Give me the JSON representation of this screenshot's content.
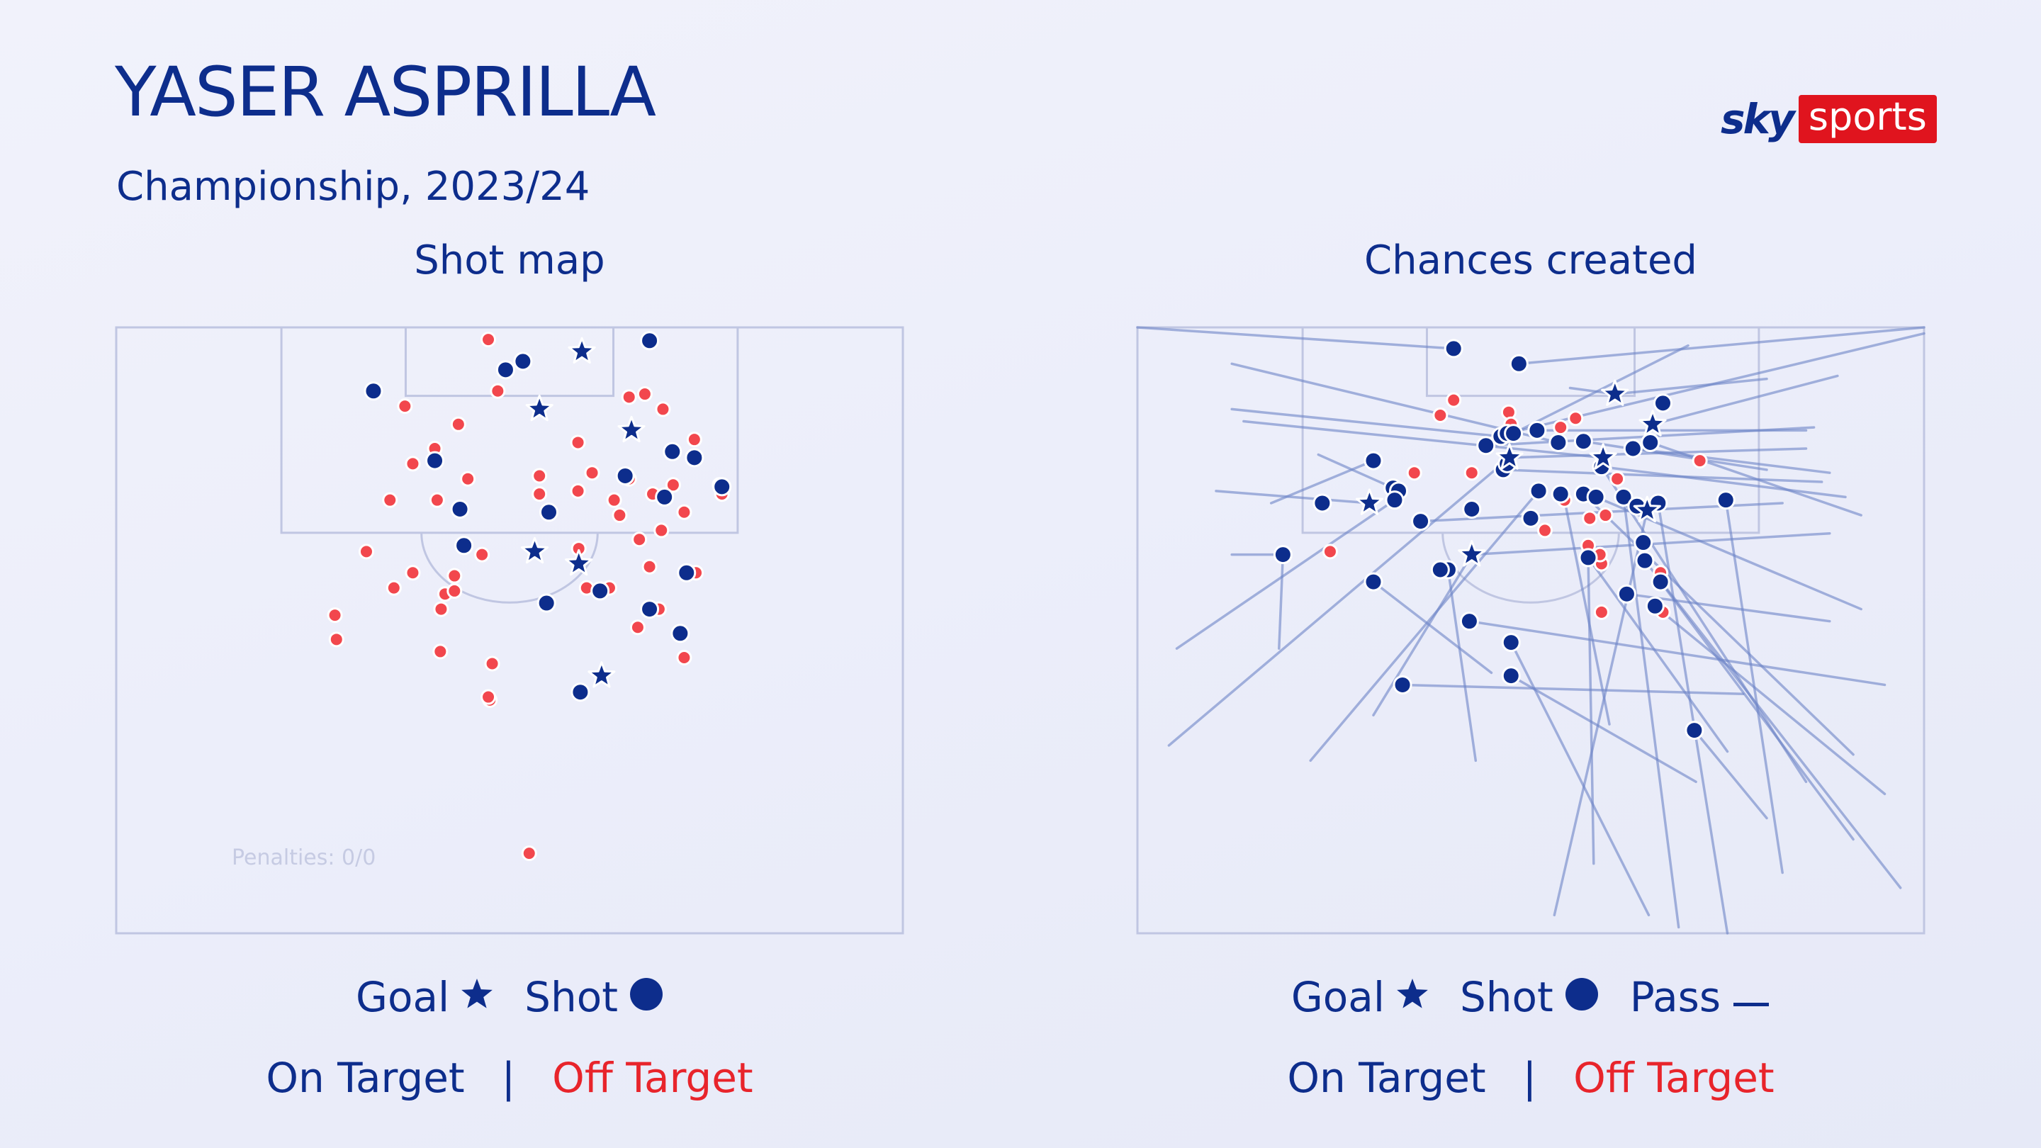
{
  "header": {
    "title": "YASER ASPRILLA",
    "subtitle": "Championship, 2023/24"
  },
  "brand": {
    "sky": "sky",
    "sports": "sports"
  },
  "colors": {
    "navy": "#0d2d8c",
    "red": "#e8242b",
    "red_dot": "#f2474d",
    "pitch_line": "#c0c6e2",
    "pass_line": "#6c83c6",
    "logo_red": "#e0141e"
  },
  "shot_map": {
    "title": "Shot map",
    "penalties": "Penalties: 0/0",
    "legend": {
      "goal": "Goal",
      "shot": "Shot",
      "on_target": "On Target",
      "separator": "|",
      "off_target": "Off Target"
    }
  },
  "chances_created": {
    "title": "Chances created",
    "legend": {
      "goal": "Goal",
      "shot": "Shot",
      "pass": "Pass",
      "on_target": "On Target",
      "separator": "|",
      "off_target": "Off Target"
    }
  },
  "chart_data": [
    {
      "type": "scatter",
      "name": "Shot map",
      "x_range": [
        0,
        100
      ],
      "y_range": [
        0,
        100
      ],
      "goals_on_target": [
        [
          59.2,
          4
        ],
        [
          53.8,
          13.5
        ],
        [
          65.5,
          17
        ],
        [
          53.2,
          37
        ],
        [
          58.8,
          39
        ],
        [
          61.7,
          57.5
        ]
      ],
      "shots_on_target": [
        [
          32.7,
          10.5
        ],
        [
          49.5,
          7
        ],
        [
          51.7,
          5.6
        ],
        [
          67.8,
          2.2
        ],
        [
          73.5,
          21.5
        ],
        [
          70.7,
          20.5
        ],
        [
          40.5,
          22
        ],
        [
          64.7,
          24.5
        ],
        [
          69.7,
          28
        ],
        [
          43.7,
          30
        ],
        [
          55,
          30.5
        ],
        [
          77,
          26.3
        ],
        [
          44.2,
          36
        ],
        [
          61.5,
          43.5
        ],
        [
          72.5,
          40.5
        ],
        [
          54.7,
          45.5
        ],
        [
          67.8,
          46.5
        ],
        [
          71.7,
          50.5
        ],
        [
          59,
          60.2
        ]
      ],
      "shots_off_target": [
        [
          47.3,
          2
        ],
        [
          48.5,
          10.5
        ],
        [
          36.7,
          13
        ],
        [
          65.2,
          11.5
        ],
        [
          67.2,
          11
        ],
        [
          69.5,
          13.5
        ],
        [
          43.5,
          16
        ],
        [
          58.7,
          19
        ],
        [
          73.5,
          18.5
        ],
        [
          40.5,
          20
        ],
        [
          37.7,
          22.5
        ],
        [
          44.7,
          25
        ],
        [
          53.8,
          24.5
        ],
        [
          60.5,
          24
        ],
        [
          65.2,
          25
        ],
        [
          70.8,
          26
        ],
        [
          76.7,
          26
        ],
        [
          34.8,
          28.5
        ],
        [
          40.8,
          28.5
        ],
        [
          53.8,
          27.5
        ],
        [
          58.7,
          27
        ],
        [
          63.3,
          28.5
        ],
        [
          68.2,
          27.5
        ],
        [
          77,
          27.5
        ],
        [
          64,
          31
        ],
        [
          72.2,
          30.5
        ],
        [
          31.8,
          37
        ],
        [
          46.5,
          37.5
        ],
        [
          58.8,
          36.5
        ],
        [
          66.5,
          35
        ],
        [
          69.3,
          33.5
        ],
        [
          37.7,
          40.5
        ],
        [
          43,
          41
        ],
        [
          73.7,
          40.5
        ],
        [
          35.3,
          43
        ],
        [
          67.8,
          39.5
        ],
        [
          41.8,
          44
        ],
        [
          43,
          43.5
        ],
        [
          59.8,
          43
        ],
        [
          62.7,
          43
        ],
        [
          27.8,
          47.5
        ],
        [
          41.3,
          46.5
        ],
        [
          66.3,
          49.5
        ],
        [
          69,
          46.5
        ],
        [
          28,
          51.5
        ],
        [
          41.2,
          53.5
        ],
        [
          72.2,
          54.5
        ],
        [
          47.8,
          55.5
        ],
        [
          47.5,
          61.5
        ],
        [
          47.3,
          61
        ],
        [
          52.5,
          86.8
        ]
      ]
    },
    {
      "type": "scatter",
      "name": "Chances created",
      "x_range": [
        0,
        100
      ],
      "y_range": [
        0,
        100
      ],
      "goals": [
        [
          60.7,
          11
        ],
        [
          65.5,
          16
        ],
        [
          59.2,
          21.5
        ],
        [
          47.3,
          21.5
        ],
        [
          42.5,
          37.5
        ],
        [
          29.5,
          29
        ],
        [
          64.8,
          30.2
        ]
      ],
      "shots_on_target": [
        [
          40.2,
          3.5
        ],
        [
          48.5,
          6
        ],
        [
          46.2,
          18
        ],
        [
          47,
          17.5
        ],
        [
          47.8,
          17.5
        ],
        [
          50.8,
          17
        ],
        [
          53.5,
          19
        ],
        [
          44.3,
          19.5
        ],
        [
          56.7,
          18.8
        ],
        [
          46.5,
          23.5
        ],
        [
          47,
          22.5
        ],
        [
          63,
          20
        ],
        [
          65.2,
          19
        ],
        [
          59,
          23
        ],
        [
          66.8,
          12.5
        ],
        [
          30,
          22
        ],
        [
          32.5,
          26.5
        ],
        [
          33.2,
          27
        ],
        [
          32.7,
          28.5
        ],
        [
          23.5,
          29
        ],
        [
          36,
          32
        ],
        [
          51,
          27
        ],
        [
          53.8,
          27.5
        ],
        [
          56.7,
          27.5
        ],
        [
          58.3,
          28
        ],
        [
          61.8,
          28
        ],
        [
          63.5,
          29.5
        ],
        [
          66.2,
          29
        ],
        [
          42.5,
          30
        ],
        [
          50,
          31.5
        ],
        [
          74.8,
          28.5
        ],
        [
          64.3,
          35.5
        ],
        [
          18.5,
          37.5
        ],
        [
          57.3,
          38
        ],
        [
          64.5,
          38.5
        ],
        [
          39.5,
          40
        ],
        [
          38.5,
          40
        ],
        [
          30,
          42
        ],
        [
          66.5,
          42
        ],
        [
          62.2,
          44
        ],
        [
          65.8,
          46
        ],
        [
          42.2,
          48.5
        ],
        [
          47.5,
          52
        ],
        [
          47.5,
          57.5
        ],
        [
          33.7,
          59
        ],
        [
          70.8,
          66.5
        ]
      ],
      "shots_off_target": [
        [
          40.2,
          12
        ],
        [
          38.5,
          14.5
        ],
        [
          47.2,
          14
        ],
        [
          47.5,
          16
        ],
        [
          55.7,
          15
        ],
        [
          53.8,
          16.5
        ],
        [
          56.7,
          19
        ],
        [
          71.5,
          22
        ],
        [
          61,
          25
        ],
        [
          35.2,
          24
        ],
        [
          42.5,
          24
        ],
        [
          54.3,
          28.5
        ],
        [
          57.5,
          31.5
        ],
        [
          59.5,
          31
        ],
        [
          51.8,
          33.5
        ],
        [
          24.5,
          37
        ],
        [
          57.3,
          36
        ],
        [
          59,
          39
        ],
        [
          58.8,
          37.5
        ],
        [
          66.5,
          40.5
        ],
        [
          59,
          47
        ],
        [
          66.8,
          47
        ]
      ],
      "passes": [
        [
          0,
          0,
          40.2,
          3.5
        ],
        [
          100,
          0,
          48.5,
          6
        ],
        [
          100,
          1,
          47,
          17.5
        ],
        [
          12,
          13.5,
          46.2,
          18
        ],
        [
          55,
          10,
          60.7,
          11
        ],
        [
          80,
          8.5,
          60.7,
          11
        ],
        [
          89,
          8,
          65.5,
          16
        ],
        [
          70,
          3,
          47.8,
          17.5
        ],
        [
          85,
          17,
          50.8,
          17
        ],
        [
          12,
          6,
          53.5,
          19
        ],
        [
          13.5,
          15.5,
          59.2,
          21.5
        ],
        [
          85,
          20,
          47.3,
          21.5
        ],
        [
          86,
          16.5,
          44.3,
          19.5
        ],
        [
          80,
          23.5,
          56.7,
          18.8
        ],
        [
          88,
          24,
          63,
          20
        ],
        [
          87,
          25.5,
          46.5,
          23.5
        ],
        [
          10,
          27,
          29.5,
          29
        ],
        [
          17,
          29,
          30,
          22
        ],
        [
          23,
          21,
          32.5,
          26.5
        ],
        [
          90,
          28,
          59,
          23
        ],
        [
          92,
          31,
          65.2,
          19
        ],
        [
          88,
          34,
          42.5,
          37.5
        ],
        [
          82,
          29,
          36,
          32
        ],
        [
          12,
          37.5,
          18.5,
          37.5
        ],
        [
          18,
          53,
          18.5,
          37.5
        ],
        [
          5,
          53,
          32.7,
          28.5
        ],
        [
          4,
          69,
          47.3,
          21.5
        ],
        [
          22,
          71.5,
          51,
          27
        ],
        [
          30,
          64,
          42.5,
          37.5
        ],
        [
          45,
          57,
          30,
          42
        ],
        [
          60,
          65.5,
          54.3,
          28.5
        ],
        [
          75,
          70,
          57.3,
          38
        ],
        [
          91,
          70.5,
          56.7,
          27.5
        ],
        [
          88,
          48.5,
          62.2,
          44
        ],
        [
          92,
          46.5,
          58.3,
          28
        ],
        [
          95,
          59,
          42.2,
          48.5
        ],
        [
          77,
          60.5,
          33.7,
          59
        ],
        [
          95,
          77,
          65.8,
          46
        ],
        [
          97,
          92.5,
          64.5,
          38.5
        ],
        [
          68.8,
          99,
          61.8,
          28
        ],
        [
          75,
          100,
          66.2,
          29
        ],
        [
          53,
          97,
          64.8,
          30.2
        ],
        [
          80,
          81,
          70.8,
          66.5
        ],
        [
          91,
          84.5,
          66.5,
          42
        ],
        [
          65,
          97,
          47.5,
          52
        ],
        [
          58,
          88.5,
          57.3,
          38
        ],
        [
          43,
          71.5,
          39.5,
          40
        ],
        [
          71,
          75,
          47.5,
          57.5
        ],
        [
          85,
          75,
          59,
          23
        ],
        [
          82,
          90,
          74.8,
          28.5
        ]
      ]
    }
  ]
}
